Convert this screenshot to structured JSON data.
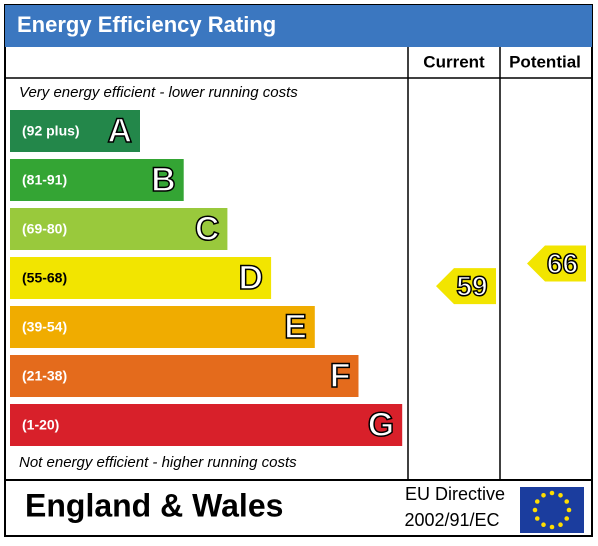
{
  "title": "Energy Efficiency Rating",
  "columns": [
    "Current",
    "Potential"
  ],
  "top_note": "Very energy efficient - lower running costs",
  "bottom_note": "Not energy efficient - higher running costs",
  "bands": [
    {
      "range": "(92 plus)",
      "letter": "A",
      "color": "#23874a"
    },
    {
      "range": "(81-91)",
      "letter": "B",
      "color": "#34a534"
    },
    {
      "range": "(69-80)",
      "letter": "C",
      "color": "#99c93c"
    },
    {
      "range": "(55-68)",
      "letter": "D",
      "color": "#f2e500"
    },
    {
      "range": "(39-54)",
      "letter": "E",
      "color": "#f0ac00"
    },
    {
      "range": "(21-38)",
      "letter": "F",
      "color": "#e46b1c"
    },
    {
      "range": "(1-20)",
      "letter": "G",
      "color": "#d8202a"
    }
  ],
  "current": 59,
  "potential": 66,
  "footer": {
    "region": "England & Wales",
    "directive_line1": "EU Directive",
    "directive_line2": "2002/91/EC"
  }
}
